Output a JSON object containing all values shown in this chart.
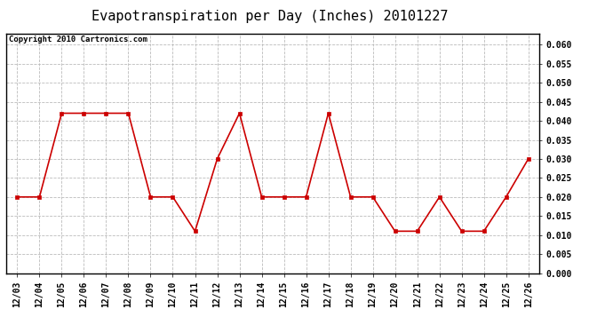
{
  "title": "Evapotranspiration per Day (Inches) 20101227",
  "copyright": "Copyright 2010 Cartronics.com",
  "x_labels": [
    "12/03",
    "12/04",
    "12/05",
    "12/06",
    "12/07",
    "12/08",
    "12/09",
    "12/10",
    "12/11",
    "12/12",
    "12/13",
    "12/14",
    "12/15",
    "12/16",
    "12/17",
    "12/18",
    "12/19",
    "12/20",
    "12/21",
    "12/22",
    "12/23",
    "12/24",
    "12/25",
    "12/26"
  ],
  "y_values": [
    0.02,
    0.02,
    0.042,
    0.042,
    0.042,
    0.042,
    0.02,
    0.02,
    0.011,
    0.03,
    0.042,
    0.02,
    0.02,
    0.02,
    0.042,
    0.02,
    0.02,
    0.011,
    0.011,
    0.02,
    0.011,
    0.011,
    0.02,
    0.03
  ],
  "line_color": "#cc0000",
  "marker": "s",
  "marker_size": 3,
  "ylim": [
    0.0,
    0.063
  ],
  "yticks": [
    0.0,
    0.005,
    0.01,
    0.015,
    0.02,
    0.025,
    0.03,
    0.035,
    0.04,
    0.045,
    0.05,
    0.055,
    0.06
  ],
  "grid_color": "#bbbbbb",
  "bg_color": "#ffffff",
  "title_fontsize": 11,
  "copyright_fontsize": 6.5,
  "tick_fontsize": 7,
  "ytick_fontsize": 7
}
